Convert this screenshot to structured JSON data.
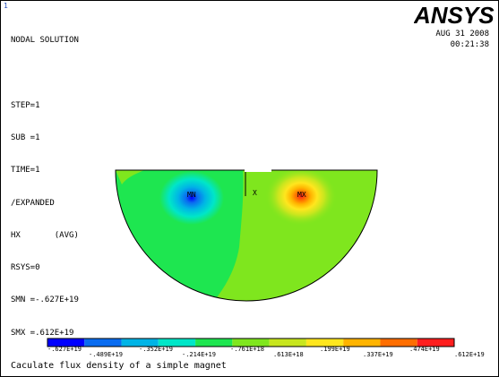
{
  "window": {
    "marker": "1"
  },
  "header": {
    "lines": [
      "NODAL SOLUTION",
      "",
      "STEP=1",
      "SUB =1",
      "TIME=1",
      "/EXPANDED",
      "HX       (AVG)",
      "RSYS=0",
      "SMN =-.627E+19",
      "SMX =.612E+19"
    ],
    "brand": "ANSYS",
    "date": "AUG 31 2008",
    "time": "00:21:38"
  },
  "plot": {
    "min_marker": "MN",
    "max_marker": "MX",
    "axis_marker": "X"
  },
  "legend": {
    "colors": [
      "#0000ff",
      "#0a6cf0",
      "#00b4e6",
      "#00e6c8",
      "#1ee650",
      "#7fe61e",
      "#c8e61e",
      "#ffe61e",
      "#ffb400",
      "#ff6e00",
      "#ff1e1e"
    ],
    "labels_bottom_row": [
      "-.627E+19",
      "-.352E+19",
      "-.761E+18",
      ".199E+19",
      ".474E+19"
    ],
    "labels_top_row": [
      "-.489E+19",
      "-.214E+19",
      ".613E+18",
      ".337E+19",
      ".612E+19"
    ]
  },
  "caption": "Caculate flux density of a simple magnet"
}
